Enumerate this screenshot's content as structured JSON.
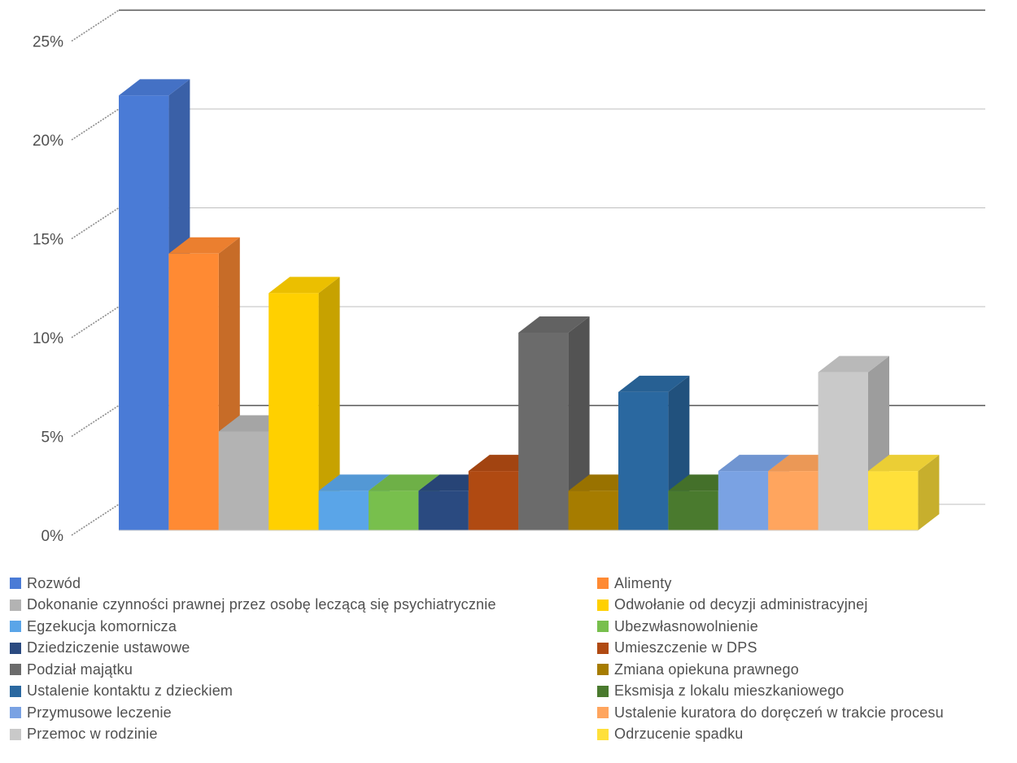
{
  "chart_data": {
    "type": "bar",
    "style": "3d-clustered-column",
    "title": "",
    "xlabel": "",
    "ylabel": "",
    "ylim": [
      0,
      0.25
    ],
    "y_ticks": [
      0,
      0.05,
      0.1,
      0.15,
      0.2,
      0.25
    ],
    "y_tick_labels": [
      "0%",
      "5%",
      "10%",
      "15%",
      "20%",
      "25%"
    ],
    "grid": true,
    "legend_position": "bottom",
    "series": [
      {
        "name": "Rozwód",
        "value": 0.22,
        "color": "#4a7bd6"
      },
      {
        "name": "Alimenty",
        "value": 0.14,
        "color": "#ff8a33"
      },
      {
        "name": "Dokonanie czynności prawnej przez osobę leczącą się psychiatrycznie",
        "value": 0.05,
        "color": "#b3b3b3"
      },
      {
        "name": "Odwołanie od decyzji administracyjnej",
        "value": 0.12,
        "color": "#ffd000"
      },
      {
        "name": "Egzekucja komornicza",
        "value": 0.02,
        "color": "#5aa5e8"
      },
      {
        "name": "Ubezwłasnowolnienie",
        "value": 0.02,
        "color": "#78bf4d"
      },
      {
        "name": "Dziedziczenie ustawowe",
        "value": 0.02,
        "color": "#2a4a80"
      },
      {
        "name": "Umieszczenie w DPS",
        "value": 0.03,
        "color": "#b04a12"
      },
      {
        "name": "Podział majątku",
        "value": 0.1,
        "color": "#6b6b6b"
      },
      {
        "name": "Zmiana opiekuna prawnego",
        "value": 0.02,
        "color": "#a67c00"
      },
      {
        "name": "Ustalenie kontaktu z dzieckiem",
        "value": 0.07,
        "color": "#2a68a0"
      },
      {
        "name": "Eksmisja z lokalu mieszkaniowego",
        "value": 0.02,
        "color": "#4a7a2e"
      },
      {
        "name": "Przymusowe leczenie",
        "value": 0.03,
        "color": "#7aa2e3"
      },
      {
        "name": "Ustalenie kuratora do doręczeń w trakcie procesu",
        "value": 0.03,
        "color": "#ffa55e"
      },
      {
        "name": "Przemoc w rodzinie",
        "value": 0.08,
        "color": "#c9c9c9"
      },
      {
        "name": "Odrzucenie spadku",
        "value": 0.03,
        "color": "#ffe03a"
      }
    ]
  }
}
